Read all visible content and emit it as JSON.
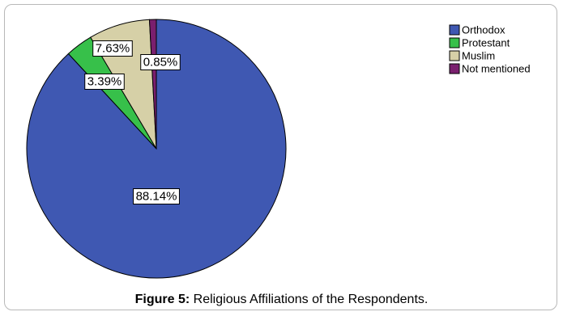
{
  "figure": {
    "label": "Figure 5:",
    "caption": "Religious Affiliations of the Respondents."
  },
  "chart_data": {
    "type": "pie",
    "title": "",
    "legend_position": "top-right",
    "slices": [
      {
        "name": "Orthodox",
        "value": 88.14,
        "label": "88.14%",
        "color": "#3f58b2"
      },
      {
        "name": "Protestant",
        "value": 3.39,
        "label": "3.39%",
        "color": "#37c04a"
      },
      {
        "name": "Muslim",
        "value": 7.63,
        "label": "7.63%",
        "color": "#d6d0a7"
      },
      {
        "name": "Not mentioned",
        "value": 0.85,
        "label": "0.85%",
        "color": "#7a1f6e"
      }
    ]
  }
}
